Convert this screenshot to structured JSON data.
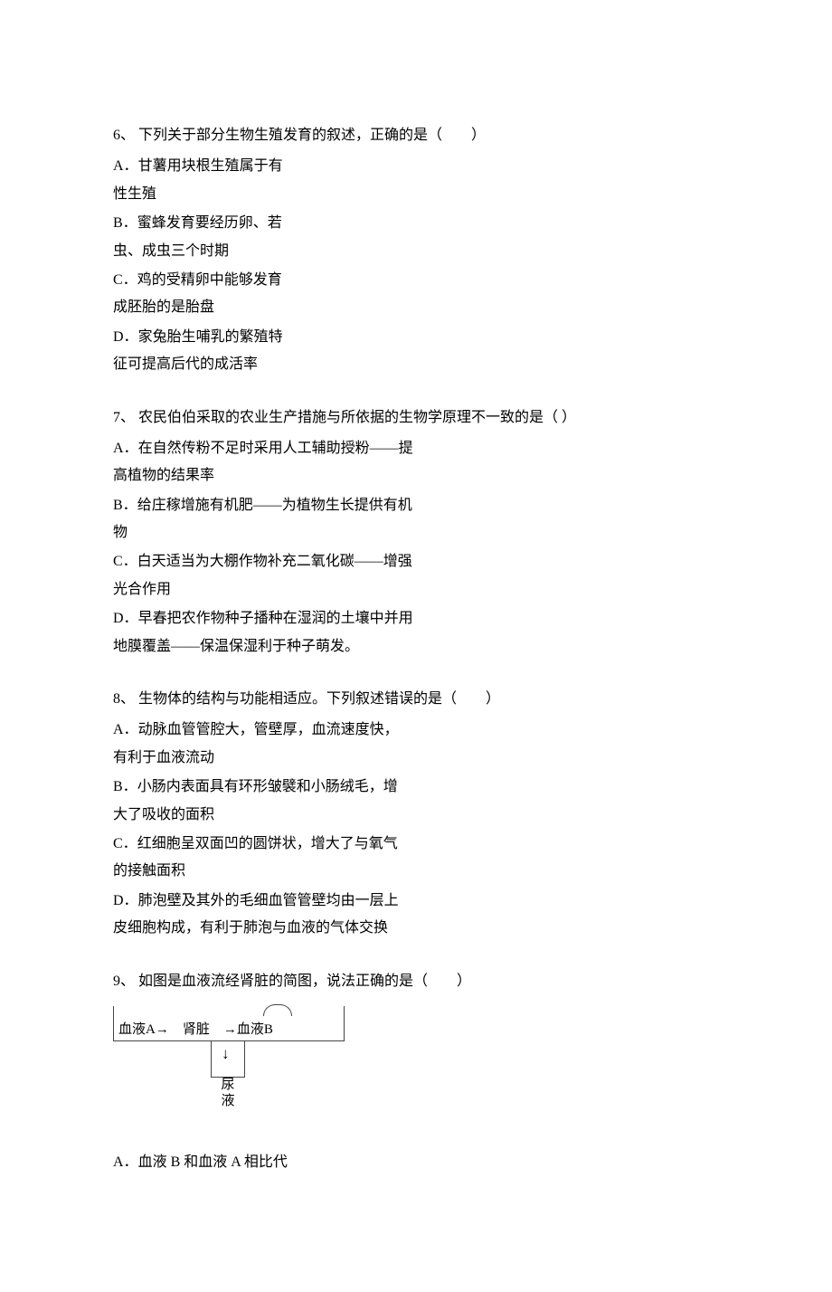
{
  "page": {
    "background_color": "#ffffff",
    "text_color": "#000000",
    "font_family": "SimSun",
    "base_fontsize": 16
  },
  "questions": [
    {
      "number": "6、",
      "stem": "下列关于部分生物生殖发育的叙述，正确的是（　　）",
      "options": [
        {
          "label": "A．",
          "lines": [
            "甘薯用块根生殖属于有",
            "性生殖"
          ]
        },
        {
          "label": "B．",
          "lines": [
            "蜜蜂发育要经历卵、若",
            "虫、成虫三个时期"
          ]
        },
        {
          "label": "C．",
          "lines": [
            "鸡的受精卵中能够发育",
            "成胚胎的是胎盘"
          ]
        },
        {
          "label": "D．",
          "lines": [
            "家兔胎生哺乳的繁殖特",
            "征可提高后代的成活率"
          ]
        }
      ]
    },
    {
      "number": "7、",
      "stem": "农民伯伯采取的农业生产措施与所依据的生物学原理不一致的是（  ）",
      "options": [
        {
          "label": "A．",
          "lines": [
            "在自然传粉不足时采用人工辅助授粉——提",
            "高植物的结果率"
          ]
        },
        {
          "label": "B．",
          "lines": [
            "给庄稼增施有机肥——为植物生长提供有机",
            "物"
          ]
        },
        {
          "label": "C．",
          "lines": [
            "白天适当为大棚作物补充二氧化碳——增强",
            "光合作用"
          ]
        },
        {
          "label": "D．",
          "lines": [
            "早春把农作物种子播种在湿润的土壤中并用",
            "地膜覆盖——保温保湿利于种子萌发。"
          ]
        }
      ]
    },
    {
      "number": "8、",
      "stem": "生物体的结构与功能相适应。下列叙述错误的是（　　）",
      "options": [
        {
          "label": "A．",
          "lines": [
            "动脉血管管腔大，管壁厚，血流速度快，",
            "有利于血液流动"
          ]
        },
        {
          "label": "B．",
          "lines": [
            "小肠内表面具有环形皱襞和小肠绒毛，增",
            "大了吸收的面积"
          ]
        },
        {
          "label": "C．",
          "lines": [
            "红细胞呈双面凹的圆饼状，增大了与氧气",
            "的接触面积"
          ]
        },
        {
          "label": "D．",
          "lines": [
            "肺泡壁及其外的毛细血管管壁均由一层上",
            "皮细胞构成，有利于肺泡与血液的气体交换"
          ]
        }
      ]
    },
    {
      "number": "9、",
      "stem": "如图是血液流经肾脏的简图，说法正确的是（　　）",
      "diagram": {
        "type": "flowchart",
        "text_fontsize": 15,
        "border_color": "#444444",
        "toprow": "血液A→　肾脏　→血液B",
        "down_arrow": "↓",
        "urine_label": "尿液",
        "nodes": [
          {
            "id": "bloodA",
            "label": "血液A"
          },
          {
            "id": "kidney",
            "label": "肾脏"
          },
          {
            "id": "bloodB",
            "label": "血液B"
          },
          {
            "id": "urine",
            "label": "尿液"
          }
        ],
        "edges": [
          {
            "from": "bloodA",
            "to": "kidney",
            "style": "arrow"
          },
          {
            "from": "kidney",
            "to": "bloodB",
            "style": "arrow"
          },
          {
            "from": "kidney",
            "to": "urine",
            "style": "arrow-down"
          }
        ]
      },
      "options": [
        {
          "label": "A．",
          "lines": [
            "血液 B 和血液 A 相比代"
          ]
        }
      ]
    }
  ]
}
